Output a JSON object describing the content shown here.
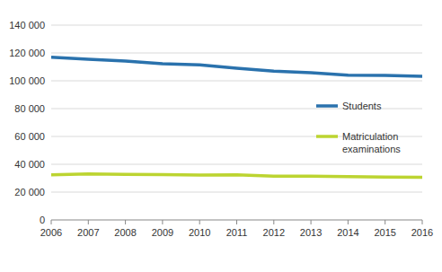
{
  "chart_data": {
    "type": "line",
    "x": [
      2006,
      2007,
      2008,
      2009,
      2010,
      2011,
      2012,
      2013,
      2014,
      2015,
      2016
    ],
    "series": [
      {
        "name": "Students",
        "color": "#2a72ad",
        "values": [
          117000,
          115500,
          114200,
          112200,
          111500,
          109000,
          107000,
          105800,
          104000,
          103800,
          103200
        ]
      },
      {
        "name": "Matriculation examinations",
        "color": "#bcd431",
        "values": [
          32500,
          33000,
          32700,
          32600,
          32300,
          32500,
          31500,
          31500,
          31200,
          30800,
          30600
        ]
      }
    ],
    "xlim": [
      2006,
      2016
    ],
    "xticks": [
      2006,
      2007,
      2008,
      2009,
      2010,
      2011,
      2012,
      2013,
      2014,
      2015,
      2016
    ],
    "ylim": [
      0,
      140000
    ],
    "yticks": [
      0,
      {
        "value": 20000,
        "label": "20 000"
      },
      {
        "value": 40000,
        "label": "40 000"
      },
      {
        "value": 60000,
        "label": "60 000"
      },
      {
        "value": 80000,
        "label": "80 000"
      },
      {
        "value": 100000,
        "label": "100 000"
      },
      {
        "value": 120000,
        "label": "120 000"
      },
      {
        "value": 140000,
        "label": "140 000"
      }
    ],
    "grid": true,
    "legend": "right"
  }
}
